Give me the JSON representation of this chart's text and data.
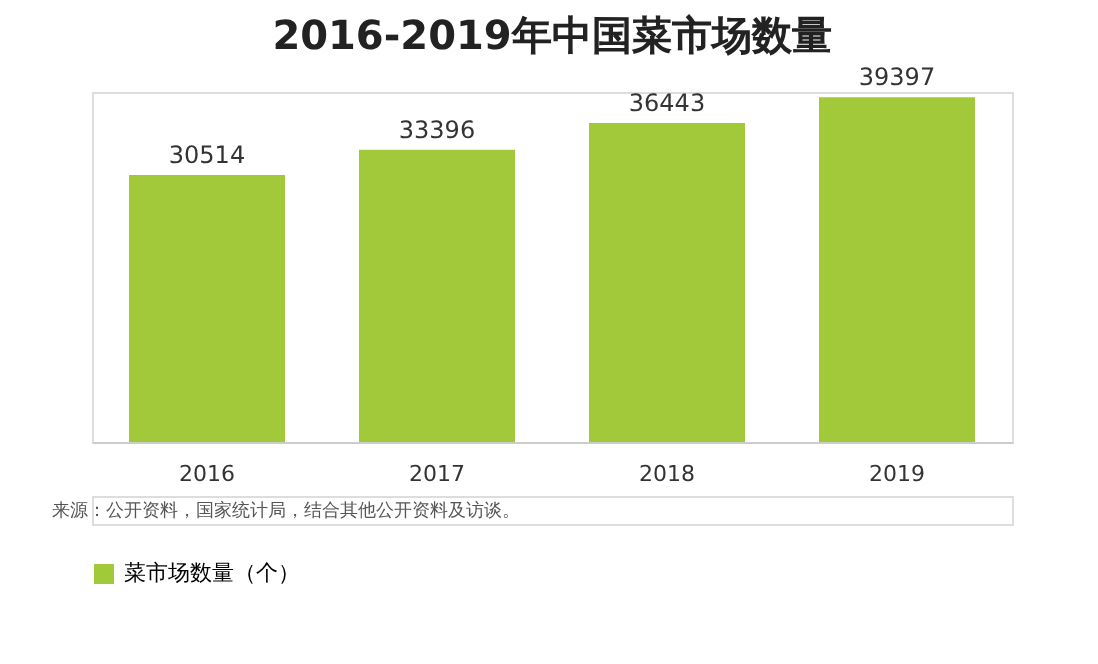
{
  "chart_data": {
    "type": "bar",
    "title": "2016-2019年中国菜市场数量",
    "categories": [
      "2016",
      "2017",
      "2018",
      "2019"
    ],
    "series": [
      {
        "name": "菜市场数量（个）",
        "color": "#a2c93a",
        "values": [
          30514,
          33396,
          36443,
          39397
        ]
      }
    ],
    "data_labels": true,
    "legend": "bottom",
    "grid": false,
    "tick_labels": "x",
    "annotations": [
      "来源：公开资料，国家统计局，结合其他公开资料及访谈。"
    ]
  }
}
